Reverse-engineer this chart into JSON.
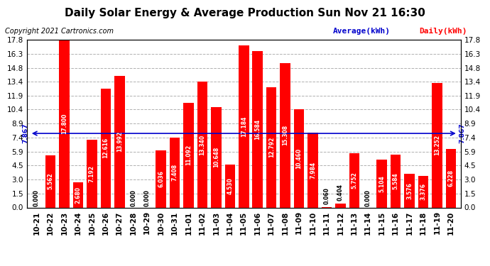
{
  "title": "Daily Solar Energy & Average Production Sun Nov 21 16:30",
  "copyright": "Copyright 2021 Cartronics.com",
  "categories": [
    "10-21",
    "10-22",
    "10-23",
    "10-24",
    "10-25",
    "10-26",
    "10-27",
    "10-28",
    "10-29",
    "10-30",
    "10-31",
    "11-01",
    "11-02",
    "11-03",
    "11-04",
    "11-05",
    "11-06",
    "11-07",
    "11-08",
    "11-09",
    "11-10",
    "11-11",
    "11-12",
    "11-13",
    "11-14",
    "11-15",
    "11-16",
    "11-17",
    "11-18",
    "11-19",
    "11-20"
  ],
  "values": [
    0.0,
    5.562,
    17.8,
    2.68,
    7.192,
    12.616,
    13.992,
    0.0,
    0.0,
    6.036,
    7.408,
    11.092,
    13.34,
    10.648,
    4.53,
    17.184,
    16.584,
    12.792,
    15.308,
    10.46,
    7.984,
    0.06,
    0.404,
    5.752,
    0.0,
    5.104,
    5.584,
    3.576,
    3.376,
    13.252,
    6.228
  ],
  "average": 7.867,
  "bar_color": "#ff0000",
  "avg_line_color": "#0000cc",
  "background_color": "#ffffff",
  "title_color": "#000000",
  "ylim_min": 0.0,
  "ylim_max": 17.8,
  "yticks": [
    0.0,
    1.5,
    3.0,
    4.5,
    5.9,
    7.4,
    8.9,
    10.4,
    11.9,
    13.4,
    14.8,
    16.3,
    17.8
  ],
  "legend_avg_label": "Average(kWh)",
  "legend_daily_label": "Daily(kWh)",
  "avg_label": "7.867",
  "title_fontsize": 11,
  "bar_label_fontsize": 5.5,
  "tick_fontsize": 7.5,
  "copyright_fontsize": 7
}
